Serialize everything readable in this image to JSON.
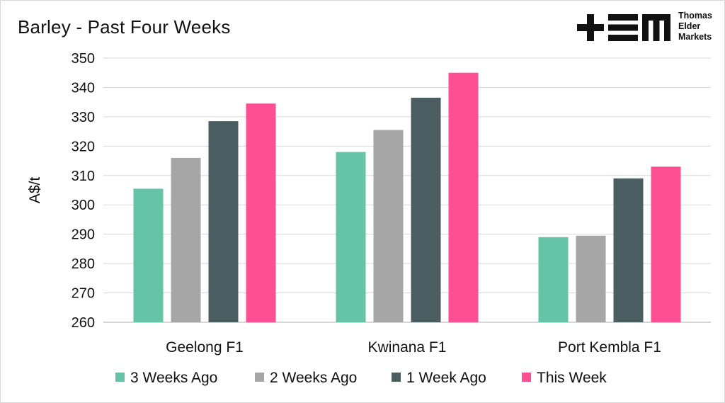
{
  "chart_data": {
    "type": "bar",
    "title": "Barley - Past Four Weeks",
    "xlabel": "",
    "ylabel": "A$/t",
    "ylim": [
      260,
      350
    ],
    "yticks": [
      260,
      270,
      280,
      290,
      300,
      310,
      320,
      330,
      340,
      350
    ],
    "grid": true,
    "legend_position": "bottom",
    "categories": [
      "Geelong F1",
      "Kwinana F1",
      "Port Kembla F1"
    ],
    "series": [
      {
        "name": "3 Weeks Ago",
        "color": "#66c4a6",
        "values": [
          305.5,
          318,
          289
        ]
      },
      {
        "name": "2 Weeks Ago",
        "color": "#a6a6a6",
        "values": [
          316,
          325.5,
          289.5
        ]
      },
      {
        "name": "1 Week Ago",
        "color": "#4a5d60",
        "values": [
          328.5,
          336.5,
          309
        ]
      },
      {
        "name": "This Week",
        "color": "#ff4f93",
        "values": [
          334.5,
          345,
          313
        ]
      }
    ]
  },
  "logo": {
    "mark": "tem-logo",
    "lines": [
      "Thomas",
      "Elder",
      "Markets"
    ]
  }
}
